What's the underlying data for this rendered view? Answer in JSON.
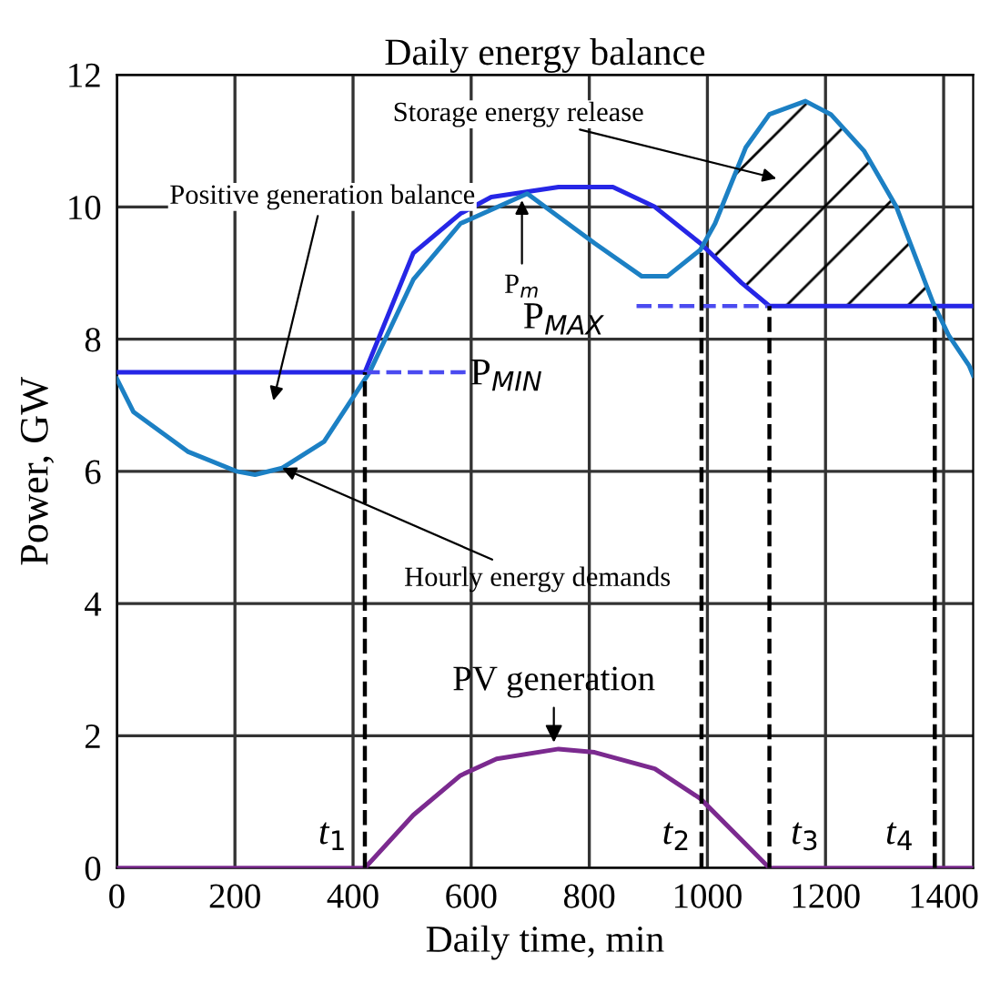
{
  "chart_data": {
    "type": "line",
    "title": "Daily energy balance",
    "xlabel": "Daily time, min",
    "ylabel": "Power, GW",
    "xlim": [
      0,
      1450
    ],
    "xticks": [
      0,
      200,
      400,
      600,
      800,
      1000,
      1200,
      1400
    ],
    "ylim": [
      0,
      12
    ],
    "yticks": [
      0,
      2,
      4,
      6,
      8,
      10,
      12
    ],
    "grid": true,
    "marker": "none",
    "line_style": "solid",
    "series": [
      {
        "color": "#2626e6",
        "x": [
          0,
          420,
          502,
          582,
          634,
          748,
          840,
          911,
          988,
          1058,
          1105,
          1450
        ],
        "values": [
          7.5,
          7.5,
          9.3,
          9.9,
          10.15,
          10.3,
          10.3,
          10.0,
          9.45,
          8.85,
          8.5,
          8.5
        ]
      },
      {
        "color": "#1c80c4",
        "x": [
          0,
          28,
          120,
          203,
          234,
          280,
          351,
          428,
          502,
          582,
          695,
          809,
          889,
          932,
          988,
          1013,
          1065,
          1105,
          1166,
          1209,
          1265,
          1320,
          1382,
          1409,
          1443,
          1450
        ],
        "values": [
          7.4,
          6.9,
          6.3,
          6.0,
          5.95,
          6.05,
          6.45,
          7.5,
          8.9,
          9.75,
          10.2,
          9.45,
          8.95,
          8.95,
          9.35,
          9.75,
          10.9,
          11.4,
          11.6,
          11.4,
          10.85,
          10.0,
          8.55,
          8.05,
          7.6,
          7.45
        ]
      },
      {
        "color": "#7b2a8f",
        "x": [
          0,
          420,
          502,
          582,
          643,
          748,
          809,
          911,
          988,
          1055,
          1105,
          1450
        ],
        "values": [
          0,
          0,
          0.8,
          1.4,
          1.65,
          1.8,
          1.75,
          1.5,
          1.05,
          0.45,
          0,
          0
        ]
      },
      {
        "color": "#4b4bf0",
        "line_style": "dashed",
        "x": [
          420,
          600
        ],
        "values": [
          7.5,
          7.5
        ]
      },
      {
        "color": "#4b4bf0",
        "line_style": "dashed",
        "x": [
          880,
          1105
        ],
        "values": [
          8.5,
          8.5
        ]
      },
      {
        "color": "#000000",
        "line_style": "dashed",
        "x": [
          420,
          420
        ],
        "values": [
          0,
          7.5
        ]
      },
      {
        "color": "#000000",
        "line_style": "dashed",
        "x": [
          990,
          990
        ],
        "values": [
          0,
          9.4
        ]
      },
      {
        "color": "#000000",
        "line_style": "dashed",
        "x": [
          1105,
          1105
        ],
        "values": [
          0,
          8.5
        ]
      },
      {
        "color": "#000000",
        "line_style": "dashed",
        "x": [
          1385,
          1385
        ],
        "values": [
          0,
          8.5
        ]
      }
    ],
    "annotations": [
      "Storage energy release",
      "Positive generation balance",
      {
        "text": "P$_{m}$",
        "x": 686,
        "y": 10.1
      },
      "P$_{MAX}$",
      "P$_{MIN}$",
      {
        "text": "Hourly energy demands",
        "x": 280,
        "y": 6.05
      },
      {
        "text": "PV generation",
        "x": 740,
        "y": 1.9
      },
      "t$_{1}$",
      "t$_{2}$",
      "t$_{3}$",
      "t$_{4}$"
    ]
  }
}
